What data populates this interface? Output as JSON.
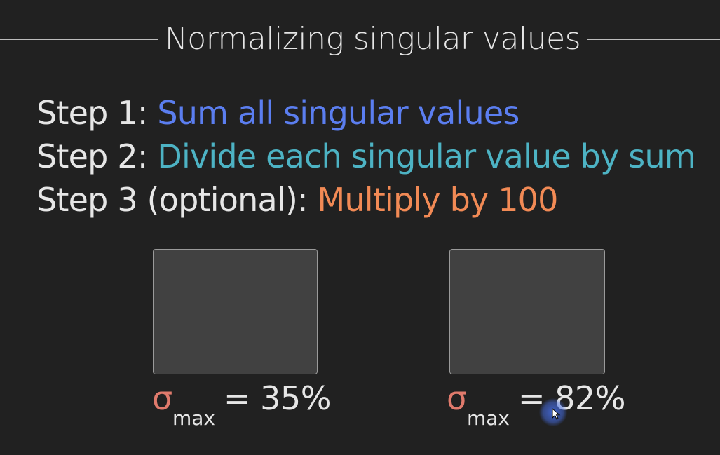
{
  "title": "Normalizing singular values",
  "steps": [
    {
      "label": "Step 1: ",
      "text": "Sum all singular values",
      "color": "#5b7ef0"
    },
    {
      "label": "Step 2: ",
      "text": "Divide each singular value by sum",
      "color": "#4db3c4"
    },
    {
      "label": "Step 3 (optional): ",
      "text": "Multiply by 100",
      "color": "#f28a55"
    }
  ],
  "panels": [
    {
      "symbol": "σ",
      "subscript": "max",
      "value": "= 35%"
    },
    {
      "symbol": "σ",
      "subscript": "max",
      "value": "= 82%"
    }
  ],
  "colors": {
    "background": "#212121",
    "sigma": "#e07a6c",
    "panel": "#414141"
  }
}
